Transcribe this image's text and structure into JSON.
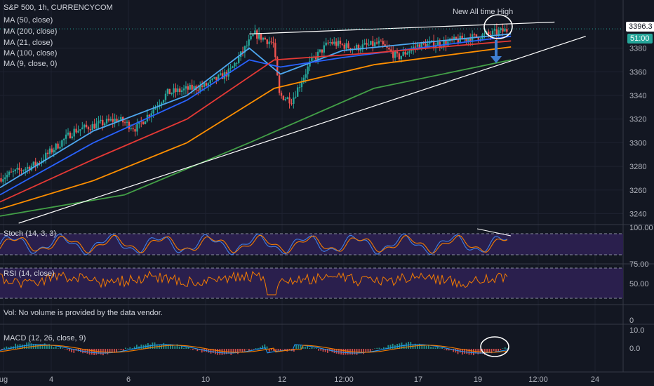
{
  "header": {
    "symbol_line": "S&P 500, 1h, CURRENCYCOM",
    "indicators": [
      "MA (50, close)",
      "MA (200, close)",
      "MA (21, close)",
      "MA (100, close)",
      "MA (9, close, 0)"
    ]
  },
  "annotation": {
    "text": "New All time High"
  },
  "price_tags": {
    "last_price": "3396.3",
    "countdown": "51:00"
  },
  "panes": {
    "stoch": {
      "label": "Stoch (14, 3, 3)",
      "upper": "100.00"
    },
    "rsi": {
      "label": "RSI (14, close)",
      "ticks": [
        "75.00",
        "50.00"
      ]
    },
    "volume": {
      "label": "Vol: No volume is provided by the data vendor.",
      "tick": "0"
    },
    "macd": {
      "label": "MACD (12, 26, close, 9)",
      "ticks": [
        "10.0",
        "0.0"
      ]
    }
  },
  "colors": {
    "background": "#131722",
    "candle_up": "#26a69a",
    "candle_down": "#ef5350",
    "ma9": "#4ea8f0",
    "ma21": "#2962ff",
    "ma50": "#e53935",
    "ma100": "#ff8f00",
    "ma200": "#43a047",
    "osc_bg": "#2a1f4d",
    "stoch_k": "#3d7fe6",
    "stoch_d": "#f57c00",
    "rsi_line": "#f57c00",
    "macd_line": "#2196f3",
    "signal_line": "#f57c00"
  },
  "chart_data": {
    "type": "candlestick",
    "title": "S&P 500, 1h, CURRENCYCOM",
    "y_axis": {
      "ticks": [
        3240,
        3260,
        3280,
        3300,
        3320,
        3340,
        3360,
        3380
      ],
      "range": [
        3232,
        3410
      ]
    },
    "x_axis": {
      "ticks": [
        "ug",
        "4",
        "6",
        "10",
        "12",
        "12:00",
        "17",
        "19",
        "12:00",
        "24"
      ]
    },
    "key_points": [
      {
        "t": 0,
        "price": 3270
      },
      {
        "t": 0.06,
        "price": 3282
      },
      {
        "t": 0.12,
        "price": 3310
      },
      {
        "t": 0.19,
        "price": 3320
      },
      {
        "t": 0.22,
        "price": 3312
      },
      {
        "t": 0.27,
        "price": 3342
      },
      {
        "t": 0.33,
        "price": 3348
      },
      {
        "t": 0.37,
        "price": 3360
      },
      {
        "t": 0.41,
        "price": 3392
      },
      {
        "t": 0.44,
        "price": 3384
      },
      {
        "t": 0.45,
        "price": 3340
      },
      {
        "t": 0.47,
        "price": 3336
      },
      {
        "t": 0.5,
        "price": 3368
      },
      {
        "t": 0.53,
        "price": 3385
      },
      {
        "t": 0.57,
        "price": 3380
      },
      {
        "t": 0.61,
        "price": 3384
      },
      {
        "t": 0.64,
        "price": 3372
      },
      {
        "t": 0.67,
        "price": 3382
      },
      {
        "t": 0.71,
        "price": 3384
      },
      {
        "t": 0.75,
        "price": 3388
      },
      {
        "t": 0.79,
        "price": 3392
      },
      {
        "t": 0.82,
        "price": 3396
      }
    ],
    "trendlines": [
      {
        "name": "resistance",
        "from": {
          "t": 0.4,
          "price": 3392
        },
        "to": {
          "t": 0.89,
          "price": 3402
        }
      },
      {
        "name": "support",
        "from": {
          "t": 0.03,
          "price": 3232
        },
        "to": {
          "t": 0.94,
          "price": 3390
        }
      }
    ],
    "moving_averages": [
      {
        "name": "MA (9, close, 0)",
        "color": "#4ea8f0",
        "points": [
          [
            0,
            3262
          ],
          [
            0.15,
            3310
          ],
          [
            0.3,
            3340
          ],
          [
            0.4,
            3380
          ],
          [
            0.45,
            3358
          ],
          [
            0.55,
            3378
          ],
          [
            0.82,
            3392
          ]
        ]
      },
      {
        "name": "MA (21, close)",
        "color": "#2962ff",
        "points": [
          [
            0,
            3256
          ],
          [
            0.15,
            3300
          ],
          [
            0.3,
            3336
          ],
          [
            0.4,
            3370
          ],
          [
            0.45,
            3364
          ],
          [
            0.55,
            3372
          ],
          [
            0.82,
            3390
          ]
        ]
      },
      {
        "name": "MA (50, close)",
        "color": "#e53935",
        "points": [
          [
            0,
            3250
          ],
          [
            0.15,
            3286
          ],
          [
            0.3,
            3320
          ],
          [
            0.44,
            3370
          ],
          [
            0.6,
            3376
          ],
          [
            0.82,
            3386
          ]
        ]
      },
      {
        "name": "MA (100, close)",
        "color": "#ff8f00",
        "points": [
          [
            0,
            3244
          ],
          [
            0.15,
            3268
          ],
          [
            0.3,
            3300
          ],
          [
            0.44,
            3346
          ],
          [
            0.6,
            3366
          ],
          [
            0.82,
            3381
          ]
        ]
      },
      {
        "name": "MA (200, close)",
        "color": "#43a047",
        "points": [
          [
            0,
            3238
          ],
          [
            0.2,
            3256
          ],
          [
            0.4,
            3300
          ],
          [
            0.6,
            3346
          ],
          [
            0.82,
            3370
          ]
        ]
      }
    ]
  }
}
